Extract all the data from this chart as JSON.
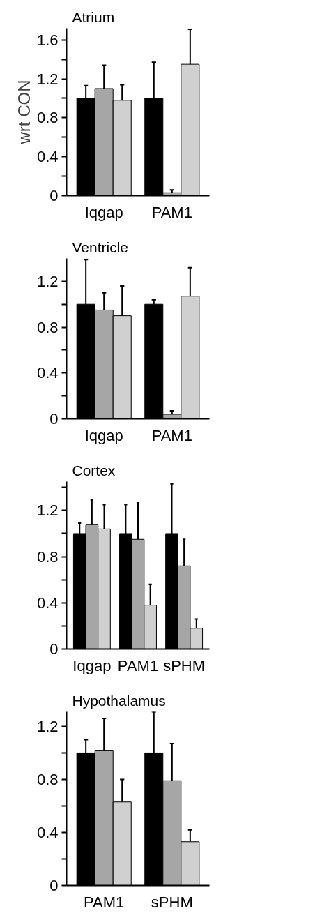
{
  "chart_data": [
    {
      "type": "bar",
      "title": "Atrium",
      "ylabel": "wrt CON",
      "categories": [
        "Iqgap",
        "PAM1"
      ],
      "ylim": [
        0,
        1.72
      ],
      "yticks": [
        0,
        {
          "value": 0.2,
          "label": null
        },
        0.4,
        {
          "value": 0.6,
          "label": null
        },
        0.8,
        {
          "value": 1.0,
          "label": null
        },
        1.2,
        {
          "value": 1.4,
          "label": null
        },
        1.6
      ],
      "grid": false,
      "series": [
        {
          "color": "#000000",
          "values": [
            1.0,
            1.0
          ],
          "errors": [
            [
              1.0,
              1.13
            ],
            [
              1.0,
              1.37
            ]
          ]
        },
        {
          "color": "#a6a6a6",
          "values": [
            1.1,
            0.03
          ],
          "errors": [
            [
              1.1,
              1.34
            ],
            [
              0.03,
              0.06
            ]
          ]
        },
        {
          "color": "#d0d0d0",
          "values": [
            0.98,
            1.35
          ],
          "errors": [
            [
              0.98,
              1.14
            ],
            [
              1.35,
              1.71
            ]
          ]
        }
      ]
    },
    {
      "type": "bar",
      "title": "Ventricle",
      "categories": [
        "Iqgap",
        "PAM1"
      ],
      "ylim": [
        0,
        1.4
      ],
      "yticks": [
        0,
        {
          "value": 0.2,
          "label": null
        },
        0.4,
        {
          "value": 0.6,
          "label": null
        },
        0.8,
        {
          "value": 1.0,
          "label": null
        },
        1.2
      ],
      "grid": false,
      "series": [
        {
          "color": "#000000",
          "values": [
            1.0,
            1.0
          ],
          "errors": [
            [
              1.0,
              1.39
            ],
            [
              1.0,
              1.04
            ]
          ]
        },
        {
          "color": "#a6a6a6",
          "values": [
            0.95,
            0.04
          ],
          "errors": [
            [
              0.95,
              1.1
            ],
            [
              0.04,
              0.07
            ]
          ]
        },
        {
          "color": "#d0d0d0",
          "values": [
            0.9,
            1.07
          ],
          "errors": [
            [
              0.9,
              1.16
            ],
            [
              1.07,
              1.32
            ]
          ]
        }
      ]
    },
    {
      "type": "bar",
      "title": "Cortex",
      "categories": [
        "Iqgap",
        "PAM1",
        "sPHM"
      ],
      "ylim": [
        0,
        1.45
      ],
      "yticks": [
        0,
        {
          "value": 0.2,
          "label": null
        },
        0.4,
        {
          "value": 0.6,
          "label": null
        },
        0.8,
        {
          "value": 1.0,
          "label": null
        },
        1.2,
        {
          "value": 1.4,
          "label": null
        }
      ],
      "grid": false,
      "series": [
        {
          "color": "#000000",
          "values": [
            1.0,
            1.0,
            1.0
          ],
          "errors": [
            [
              1.0,
              1.09
            ],
            [
              1.0,
              1.25
            ],
            [
              1.0,
              1.43
            ]
          ]
        },
        {
          "color": "#a6a6a6",
          "values": [
            1.08,
            0.95,
            0.72
          ],
          "errors": [
            [
              1.08,
              1.29
            ],
            [
              0.95,
              1.27
            ],
            [
              0.72,
              0.95
            ]
          ]
        },
        {
          "color": "#d0d0d0",
          "values": [
            1.04,
            0.38,
            0.18
          ],
          "errors": [
            [
              1.04,
              1.25
            ],
            [
              0.38,
              0.56
            ],
            [
              0.18,
              0.26
            ]
          ]
        }
      ]
    },
    {
      "type": "bar",
      "title": "Hypothalamus",
      "categories": [
        "PAM1",
        "sPHM"
      ],
      "ylim": [
        0,
        1.31
      ],
      "yticks": [
        0,
        {
          "value": 0.2,
          "label": null
        },
        0.4,
        {
          "value": 0.6,
          "label": null
        },
        0.8,
        {
          "value": 1.0,
          "label": null
        },
        1.2
      ],
      "grid": false,
      "series": [
        {
          "color": "#000000",
          "values": [
            1.0,
            1.0
          ],
          "errors": [
            [
              1.0,
              1.1
            ],
            [
              1.0,
              1.31
            ]
          ]
        },
        {
          "color": "#a6a6a6",
          "values": [
            1.02,
            0.79
          ],
          "errors": [
            [
              1.02,
              1.26
            ],
            [
              0.79,
              1.07
            ]
          ]
        },
        {
          "color": "#d0d0d0",
          "values": [
            0.63,
            0.33
          ],
          "errors": [
            [
              0.63,
              0.8
            ],
            [
              0.33,
              0.42
            ]
          ]
        }
      ]
    }
  ]
}
